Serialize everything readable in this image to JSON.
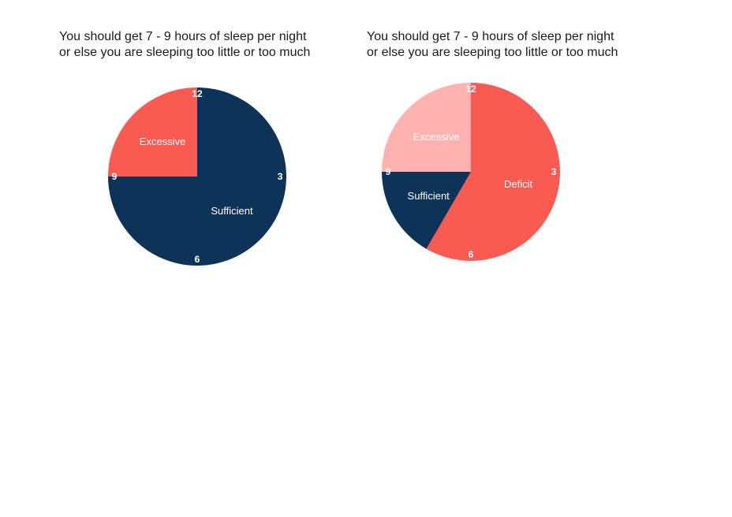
{
  "chart_data": [
    {
      "type": "pie",
      "title_lines": [
        "You should get 7 - 9 hours of sleep per night",
        "or else you are sleeping too little or too much"
      ],
      "clock_labels": [
        "12",
        "3",
        "6",
        "9"
      ],
      "slices": [
        {
          "label": "Sufficient",
          "start_hour": 0,
          "end_hour": 9,
          "color": "#0e3358"
        },
        {
          "label": "Excessive",
          "start_hour": 9,
          "end_hour": 12,
          "color": "#f95b53"
        }
      ]
    },
    {
      "type": "pie",
      "title_lines": [
        "You should get 7 - 9 hours of sleep per night",
        "or else you are sleeping too little or too much"
      ],
      "clock_labels": [
        "12",
        "3",
        "6",
        "9"
      ],
      "slices": [
        {
          "label": "Deficit",
          "start_hour": 0,
          "end_hour": 7,
          "color": "#f95b53"
        },
        {
          "label": "Sufficient",
          "start_hour": 7,
          "end_hour": 9,
          "color": "#0e3358"
        },
        {
          "label": "Excessive",
          "start_hour": 9,
          "end_hour": 12,
          "color": "#ffb3b0"
        }
      ]
    }
  ]
}
